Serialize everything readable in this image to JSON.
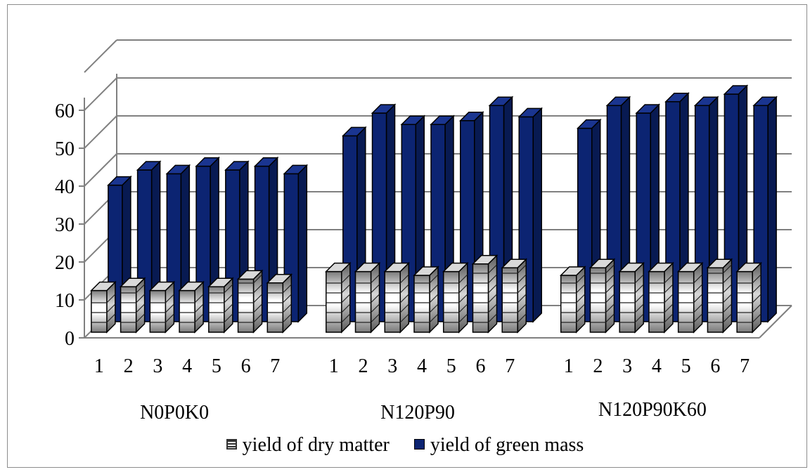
{
  "chart_data": {
    "type": "bar",
    "title": "",
    "xlabel": "",
    "ylabel": "",
    "ylim": [
      0,
      60
    ],
    "yticks": [
      0,
      10,
      20,
      30,
      40,
      50,
      60
    ],
    "groups": [
      {
        "name": "N0P0K0",
        "categories": [
          "1",
          "2",
          "3",
          "4",
          "5",
          "6",
          "7"
        ]
      },
      {
        "name": "N120P90",
        "categories": [
          "1",
          "2",
          "3",
          "4",
          "5",
          "6",
          "7"
        ]
      },
      {
        "name": "N120P90K60",
        "categories": [
          "1",
          "2",
          "3",
          "4",
          "5",
          "6",
          "7"
        ]
      }
    ],
    "series": [
      {
        "name": "yield of dry matter",
        "color": "#b0b0b0",
        "values": [
          11,
          12,
          11,
          11,
          12,
          14,
          13,
          16,
          16,
          16,
          15,
          16,
          18,
          17,
          15,
          17,
          16,
          16,
          16,
          17,
          16
        ]
      },
      {
        "name": "yield of green mass",
        "color": "#0c2472",
        "values": [
          36,
          40,
          39,
          41,
          40,
          41,
          39,
          49,
          55,
          52,
          52,
          53,
          57,
          54,
          51,
          57,
          55,
          58,
          57,
          60,
          57
        ]
      }
    ],
    "grid": true,
    "legend": "bottom"
  }
}
